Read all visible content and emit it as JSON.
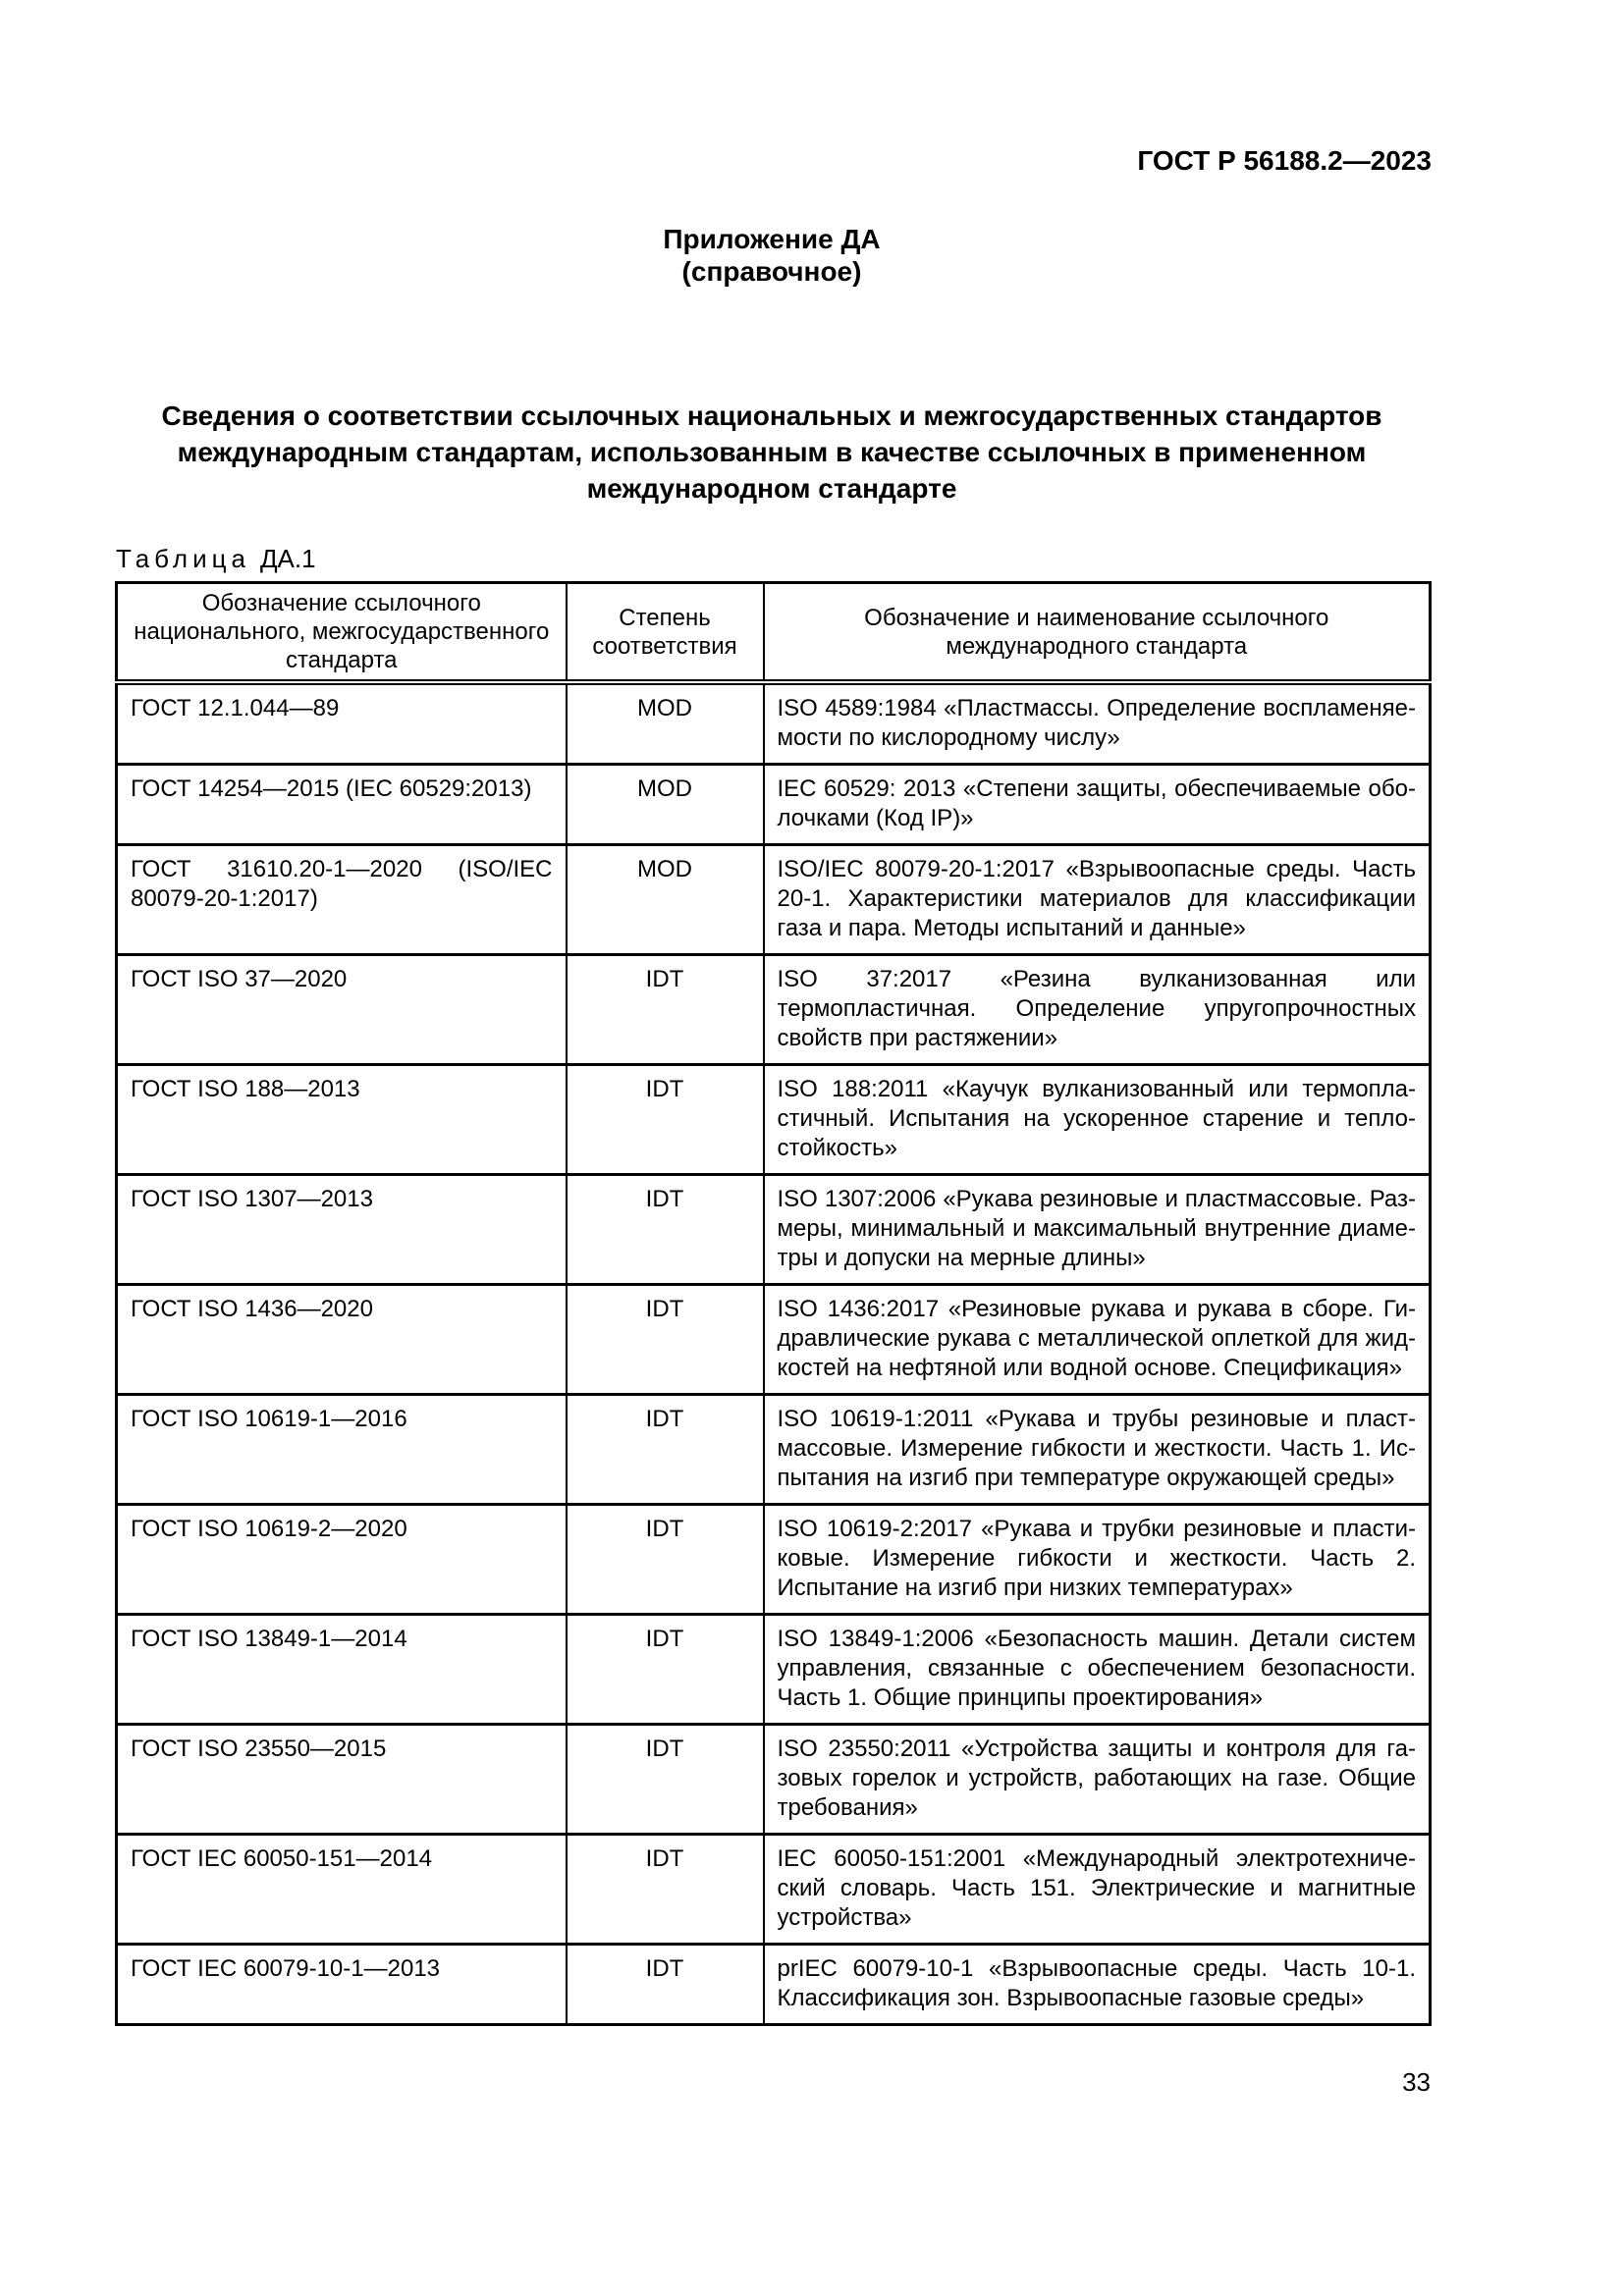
{
  "page": {
    "running_head": "ГОСТ Р 56188.2—2023",
    "appendix_label": "Приложение ДА",
    "appendix_type": "(справочное)",
    "title": "Сведения о соответствии ссылочных национальных и межгосударственных стандартов международным стандартам, использованным в качестве ссылочных в примененном международном стандарте",
    "table_caption_label": "Таблица",
    "table_caption_number": "ДА.1",
    "page_number": "33"
  },
  "table": {
    "columns": [
      "Обозначение ссылочного национального, межгосударственного стандарта",
      "Степень соответствия",
      "Обозначение и наименование ссылочного международного стандарта"
    ],
    "rows": [
      {
        "national": "ГОСТ 12.1.044—89",
        "degree": "MOD",
        "international": "ISO 4589:1984 «Пластмассы. Определение воспламеняе­мости по кислородному числу»"
      },
      {
        "national": "ГОСТ 14254—2015 (IEC 60529:2013)",
        "degree": "MOD",
        "international": "IEC 60529: 2013 «Степени защиты, обеспечиваемые обо­лочками (Код IP)»"
      },
      {
        "national": "ГОСТ 31610.20-1—2020 (ISO/​IEC 80079-20-1:2017)",
        "degree": "MOD",
        "international": "ISO/IEC 80079-20-1:2017 «Взрывоопасные среды. Часть 20-1. Характеристики материалов для классификации газа и пара. Методы испытаний и данные»"
      },
      {
        "national": "ГОСТ ISO 37—2020",
        "degree": "IDT",
        "international": "ISO 37:2017 «Резина вулканизованная или термопластичная. Определение упругопрочностных свойств при растяжении»"
      },
      {
        "national": "ГОСТ ISO 188—2013",
        "degree": "IDT",
        "international": "ISO 188:2011 «Каучук вулканизованный или термопла­стичный. Испытания на ускоренное старение и тепло­стойкость»"
      },
      {
        "national": "ГОСТ ISO 1307—2013",
        "degree": "IDT",
        "international": "ISO 1307:2006 «Рукава резиновые и пластмассовые. Раз­меры, минимальный и максимальный внутренние диаме­тры и допуски на мерные длины»"
      },
      {
        "national": "ГОСТ ISO 1436—2020",
        "degree": "IDT",
        "international": "ISO 1436:2017 «Резиновые рукава и рукава в сборе. Ги­дравлические рукава с металлической оплеткой для жид­костей на нефтяной или водной основе. Спецификация»"
      },
      {
        "national": "ГОСТ ISO 10619-1—2016",
        "degree": "IDT",
        "international": "ISO 10619-1:2011 «Рукава и трубы резиновые и пласт­массовые. Измерение гибкости и жесткости. Часть 1. Ис­пытания на изгиб при температуре окружающей среды»"
      },
      {
        "national": "ГОСТ ISO 10619-2—2020",
        "degree": "IDT",
        "international": "ISO 10619-2:2017 «Рукава и трубки резиновые и пласти­ковые. Измерение гибкости и жесткости. Часть 2. Испыта­ние на изгиб при низких температурах»"
      },
      {
        "national": "ГОСТ ISO 13849-1—2014",
        "degree": "IDT",
        "international": "ISO 13849-1:2006 «Безопасность машин. Детали систем управления, связанные с обеспечением безопасности. Часть 1. Общие принципы проектирования»"
      },
      {
        "national": "ГОСТ ISO 23550—2015",
        "degree": "IDT",
        "international": "ISO 23550:2011 «Устройства защиты и контроля для га­зовых горелок и устройств, работающих на газе. Общие требования»"
      },
      {
        "national": "ГОСТ IEC 60050-151—2014",
        "degree": "IDT",
        "international": "IEC 60050-151:2001 «Международный электротехниче­ский словарь. Часть 151. Электрические и магнитные устройства»"
      },
      {
        "national": "ГОСТ IEC 60079-10-1—2013",
        "degree": "IDT",
        "international": "prIEC 60079-10-1 «Взрывоопасные среды. Часть 10-1. Классификация зон. Взрывоопасные газовые среды»"
      }
    ]
  }
}
